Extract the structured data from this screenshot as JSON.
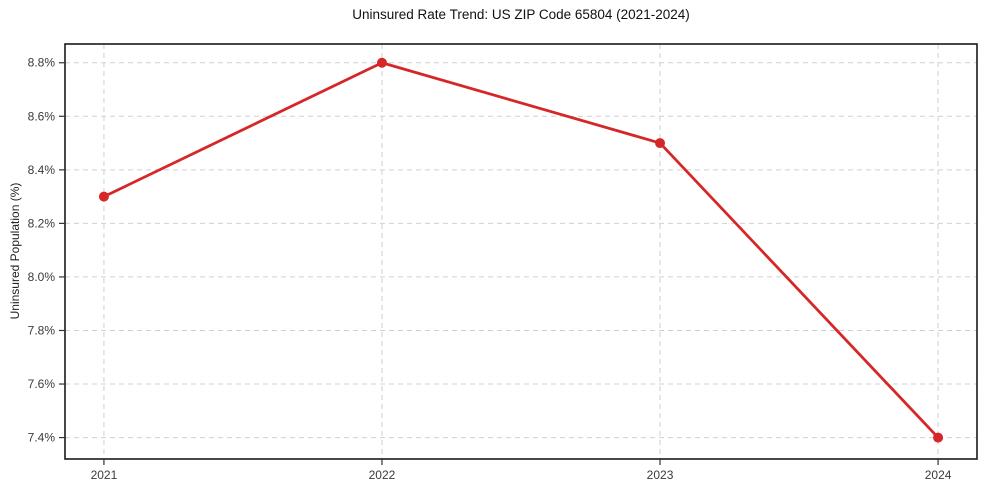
{
  "chart_data": {
    "type": "line",
    "title": "Uninsured Rate Trend: US ZIP Code 65804 (2021-2024)",
    "xlabel": "",
    "ylabel": "Uninsured Population (%)",
    "categories": [
      "2021",
      "2022",
      "2023",
      "2024"
    ],
    "x": [
      2021,
      2022,
      2023,
      2024
    ],
    "series": [
      {
        "name": "Uninsured rate",
        "color": "#d62728",
        "values": [
          8.3,
          8.8,
          8.5,
          7.4
        ]
      }
    ],
    "y_ticks": [
      {
        "value": 8.8,
        "label": "8.8%"
      },
      {
        "value": 8.6,
        "label": "8.6%"
      },
      {
        "value": 8.4,
        "label": "8.4%"
      },
      {
        "value": 8.2,
        "label": "8.2%"
      },
      {
        "value": 8.0,
        "label": "8.0%"
      },
      {
        "value": 7.8,
        "label": "7.8%"
      },
      {
        "value": 7.6,
        "label": "7.6%"
      },
      {
        "value": 7.4,
        "label": "7.4%"
      }
    ],
    "xlim": [
      2020.86,
      2024.14
    ],
    "ylim": [
      7.32,
      8.87
    ],
    "grid": "dashed",
    "legend": "none",
    "marker": "circle",
    "marker_radius": 5,
    "colors": {
      "line": "#d62728",
      "grid": "#d0d0d0",
      "axis_border": "#1a1a1a",
      "tick_text": "#3a3a3a",
      "background": "#ffffff"
    }
  }
}
